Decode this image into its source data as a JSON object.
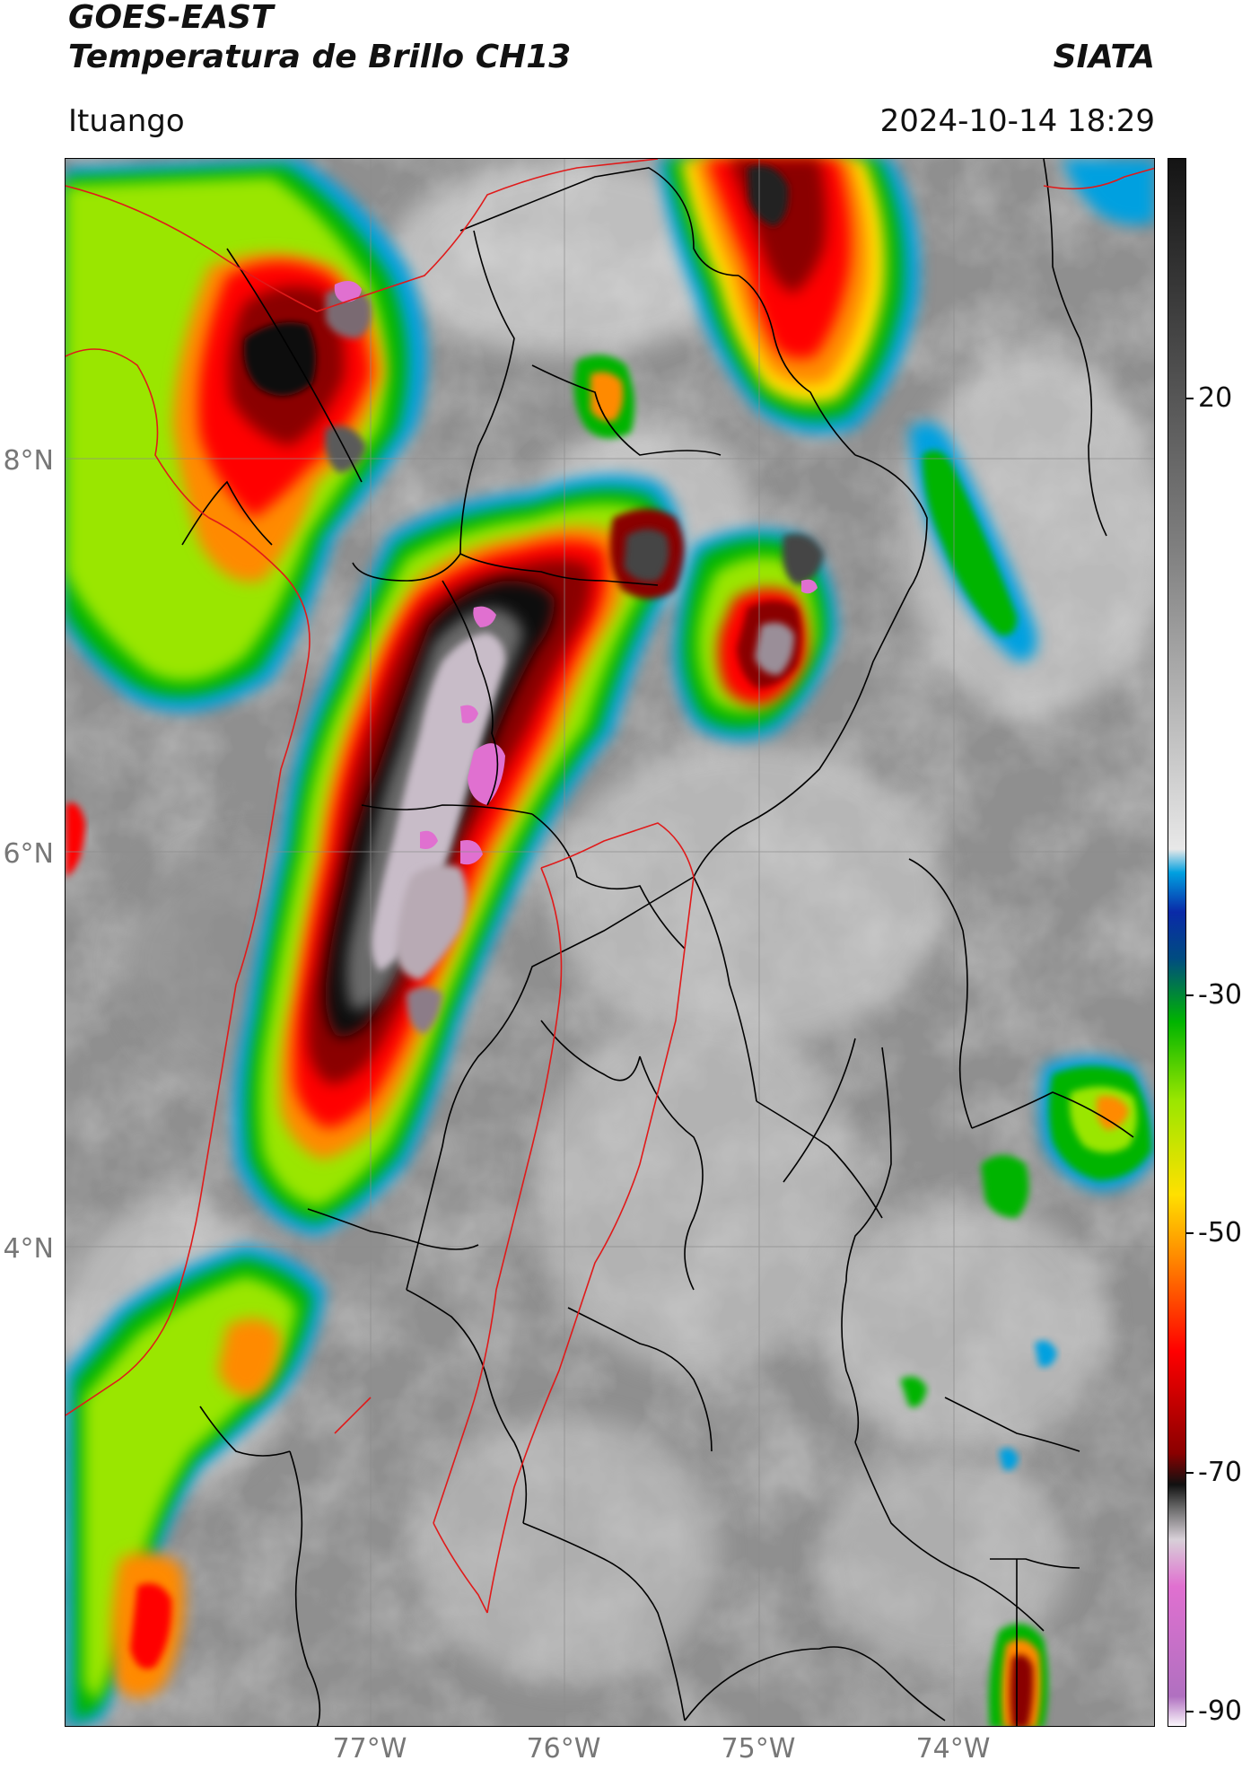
{
  "header": {
    "title_line1": "GOES-EAST",
    "title_line2": "Temperatura de Brillo CH13",
    "organization": "SIATA",
    "location": "Ituango",
    "timestamp": "2024-10-14 18:29"
  },
  "map": {
    "lat_labels": [
      "8°N",
      "6°N",
      "4°N"
    ],
    "lon_labels": [
      "77°W",
      "76°W",
      "75°W",
      "74°W"
    ],
    "colors": {
      "black_border": "#000000",
      "red_border": "#e01a1a",
      "grid": "#8c8c8c"
    }
  },
  "colorbar": {
    "tick_labels": [
      "20",
      "-30",
      "-50",
      "-70",
      "-90"
    ],
    "colors": [
      "#ffffff",
      "#b070c0",
      "#e070d0",
      "#d8d0d8",
      "#6a6a6a",
      "#111111",
      "#8a0000",
      "#ff0000",
      "#ff8a00",
      "#ffe000",
      "#9ae600",
      "#00b400",
      "#004c80",
      "#0a2aa8",
      "#00a0e0",
      "#e8e8e8",
      "#808080",
      "#141414"
    ]
  }
}
